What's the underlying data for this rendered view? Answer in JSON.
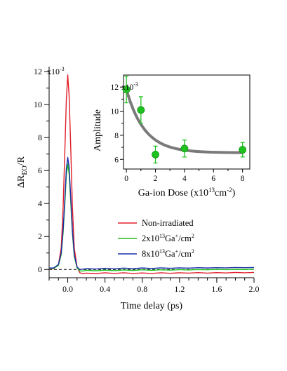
{
  "chart_data": [
    {
      "type": "line",
      "xlabel": "Time delay (ps)",
      "ylabel": "ΔR",
      "ylabel_sub": "EO",
      "ylabel_tail": "/R",
      "xlim": [
        -0.2,
        2.0
      ],
      "ylim": [
        -0.5,
        12.3
      ],
      "y_multiplier": "x10",
      "y_multiplier_exp": "-3",
      "x_ticks": [
        0.0,
        0.4,
        0.8,
        1.2,
        1.6,
        2.0
      ],
      "x_tick_labels": [
        "0.0",
        "0.4",
        "0.8",
        "1.2",
        "1.6",
        "2.0"
      ],
      "y_ticks": [
        0,
        2,
        4,
        6,
        8,
        10,
        12
      ],
      "y_tick_labels": [
        "0",
        "2",
        "4",
        "6",
        "8",
        "10",
        "12"
      ],
      "baseline": 0,
      "legend_position": "lower-right",
      "series": [
        {
          "name": "Non-irradiated",
          "color": "#e0202a",
          "peak": 11.8,
          "x": [
            -0.2,
            -0.15,
            -0.1,
            -0.07,
            -0.05,
            -0.03,
            -0.015,
            0.0,
            0.015,
            0.03,
            0.05,
            0.07,
            0.1,
            0.13,
            0.16,
            0.2,
            0.3,
            0.4,
            0.5,
            0.6,
            0.7,
            0.8,
            0.9,
            1.0,
            1.1,
            1.2,
            1.3,
            1.4,
            1.5,
            1.6,
            1.7,
            1.8,
            1.9,
            2.0
          ],
          "values": [
            0.03,
            0.05,
            0.3,
            1.3,
            3.7,
            7.4,
            10.3,
            11.8,
            10.5,
            7.8,
            3.8,
            1.3,
            0.15,
            -0.2,
            -0.25,
            -0.22,
            -0.25,
            -0.2,
            -0.24,
            -0.2,
            -0.24,
            -0.21,
            -0.24,
            -0.2,
            -0.23,
            -0.2,
            -0.22,
            -0.19,
            -0.22,
            -0.19,
            -0.21,
            -0.18,
            -0.2,
            -0.18
          ]
        },
        {
          "name": "2x10",
          "name_sup": "13",
          "name_tail": "Ga",
          "name_sup2": "+",
          "name_tail2": "/cm",
          "name_sup3": "2",
          "color": "#1ec21e",
          "peak": 6.4,
          "x": [
            -0.2,
            -0.15,
            -0.1,
            -0.07,
            -0.05,
            -0.03,
            -0.015,
            0.0,
            0.015,
            0.03,
            0.05,
            0.07,
            0.1,
            0.13,
            0.16,
            0.2,
            0.3,
            0.4,
            0.5,
            0.6,
            0.7,
            0.8,
            0.9,
            1.0,
            1.1,
            1.2,
            1.3,
            1.4,
            1.5,
            1.6,
            1.7,
            1.8,
            1.9,
            2.0
          ],
          "values": [
            0.05,
            0.07,
            0.25,
            0.9,
            2.2,
            4.1,
            5.7,
            6.4,
            5.8,
            4.3,
            2.2,
            0.8,
            0.1,
            -0.08,
            -0.1,
            -0.05,
            -0.08,
            -0.04,
            -0.07,
            -0.03,
            -0.06,
            -0.02,
            -0.05,
            -0.02,
            -0.04,
            -0.01,
            -0.03,
            0.0,
            -0.02,
            0.01,
            -0.01,
            0.01,
            0.0,
            0.02
          ]
        },
        {
          "name": "8x10",
          "name_sup": "13",
          "name_tail": "Ga",
          "name_sup2": "+",
          "name_tail2": "/cm",
          "name_sup3": "2",
          "color": "#1c2fa8",
          "peak": 6.8,
          "x": [
            -0.2,
            -0.15,
            -0.1,
            -0.07,
            -0.05,
            -0.03,
            -0.015,
            0.0,
            0.015,
            0.03,
            0.05,
            0.07,
            0.1,
            0.13,
            0.16,
            0.2,
            0.3,
            0.4,
            0.5,
            0.6,
            0.7,
            0.8,
            0.9,
            1.0,
            1.1,
            1.2,
            1.3,
            1.4,
            1.5,
            1.6,
            1.7,
            1.8,
            1.9,
            2.0
          ],
          "values": [
            0.08,
            0.1,
            0.3,
            1.0,
            2.4,
            4.4,
            6.1,
            6.8,
            6.2,
            4.6,
            2.4,
            0.9,
            0.15,
            0.0,
            0.02,
            0.05,
            0.03,
            0.07,
            0.04,
            0.08,
            0.05,
            0.09,
            0.06,
            0.1,
            0.07,
            0.1,
            0.08,
            0.11,
            0.09,
            0.11,
            0.1,
            0.12,
            0.11,
            0.12
          ]
        }
      ]
    },
    {
      "type": "scatter",
      "xlabel": "Ga-ion Dose (x10",
      "xlabel_sup": "13",
      "xlabel_tail": "cm",
      "xlabel_sup2": "-2",
      "xlabel_close": ")",
      "ylabel": "Amplitude",
      "y_multiplier": "x10",
      "y_multiplier_exp": "-3",
      "xlim": [
        -0.2,
        8.5
      ],
      "ylim": [
        5.2,
        13.0
      ],
      "x_ticks": [
        0,
        2,
        4,
        6,
        8
      ],
      "x_tick_labels": [
        "0",
        "2",
        "4",
        "6",
        "8"
      ],
      "y_ticks": [
        6,
        8,
        10,
        12
      ],
      "y_tick_labels": [
        "6",
        "8",
        "10",
        "12"
      ],
      "marker_color": "#1ec21e",
      "fit_color": "#7a7a7a",
      "points": [
        {
          "x": 0,
          "y": 11.8,
          "err": 1.1
        },
        {
          "x": 1,
          "y": 10.1,
          "err": 1.1
        },
        {
          "x": 2,
          "y": 6.4,
          "err": 0.7
        },
        {
          "x": 4,
          "y": 6.9,
          "err": 0.7
        },
        {
          "x": 8,
          "y": 6.8,
          "err": 0.6
        }
      ],
      "fit": {
        "form": "exponential",
        "offset": 6.55,
        "amplitude": 5.25,
        "decay": 1.25
      }
    }
  ]
}
